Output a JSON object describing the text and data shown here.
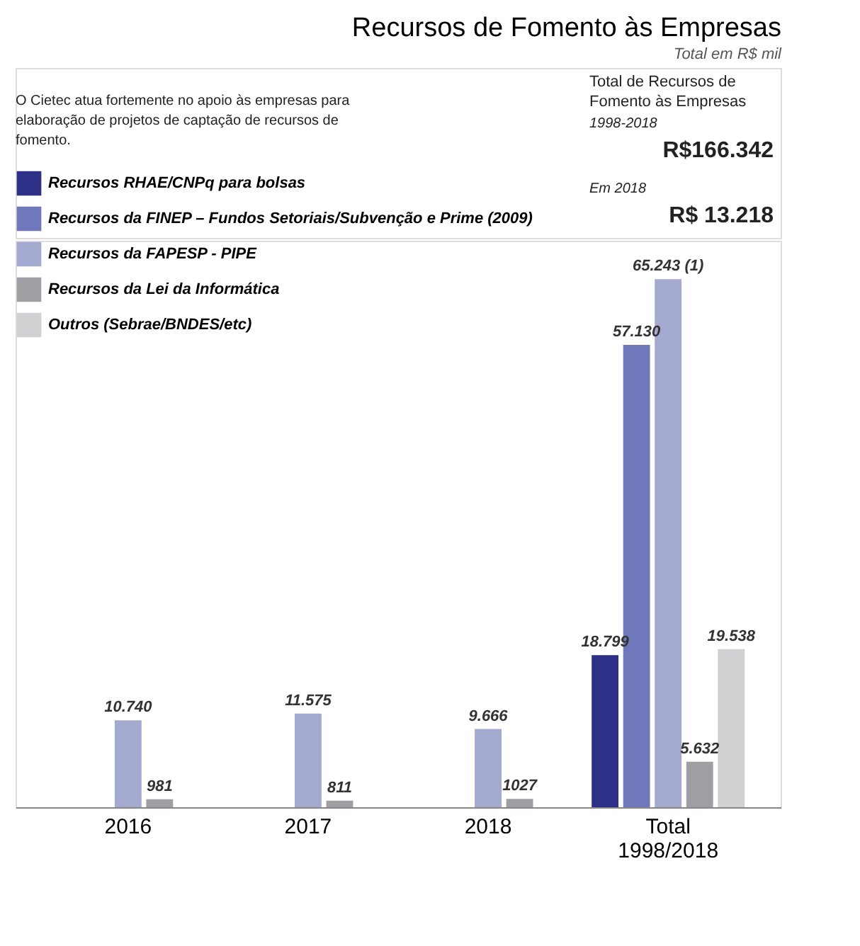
{
  "chart_data": {
    "type": "bar",
    "title": "Recursos de Fomento às Empresas",
    "subtitle": "Total em R$ mil",
    "categories": [
      "2016",
      "2017",
      "2018",
      "Total 1998/2018"
    ],
    "series": [
      {
        "name": "Recursos RHAE/CNPq para bolsas",
        "color": "#2e3087",
        "values": [
          null,
          null,
          null,
          18799
        ],
        "value_labels": [
          null,
          null,
          null,
          "18.799"
        ]
      },
      {
        "name": "Recursos da FINEP  – Fundos Setoriais/Subvenção e Prime (2009)",
        "color": "#6f78bb",
        "values": [
          null,
          null,
          null,
          57130
        ],
        "value_labels": [
          null,
          null,
          null,
          "57.130"
        ]
      },
      {
        "name": "Recursos da FAPESP  - PIPE",
        "color": "#a3a9cf",
        "values": [
          10740,
          11575,
          9666,
          65243
        ],
        "value_labels": [
          "10.740",
          "11.575",
          "9.666",
          "65.243 (1)"
        ]
      },
      {
        "name": "Recursos da Lei da Informática",
        "color": "#9d9fa2",
        "values": [
          981,
          811,
          1027,
          5632
        ],
        "value_labels": [
          "981",
          "811",
          "1027",
          "5.632"
        ]
      },
      {
        "name": "Outros (Sebrae/BNDES/etc)",
        "color": "#d0d1d3",
        "values": [
          null,
          null,
          null,
          19538
        ],
        "value_labels": [
          null,
          null,
          null,
          "19.538"
        ]
      }
    ],
    "legend": "top left",
    "grid": false,
    "tick_labels": "x",
    "annotations": [
      "Total de Recursos de Fomento às Empresas",
      "1998-2018",
      "R$166.342",
      "Em 2018",
      "R$ 13.218",
      "O Cietec atua fortemente no apoio às empresas para elaboração de projetos de captação de recursos de fomento."
    ]
  }
}
